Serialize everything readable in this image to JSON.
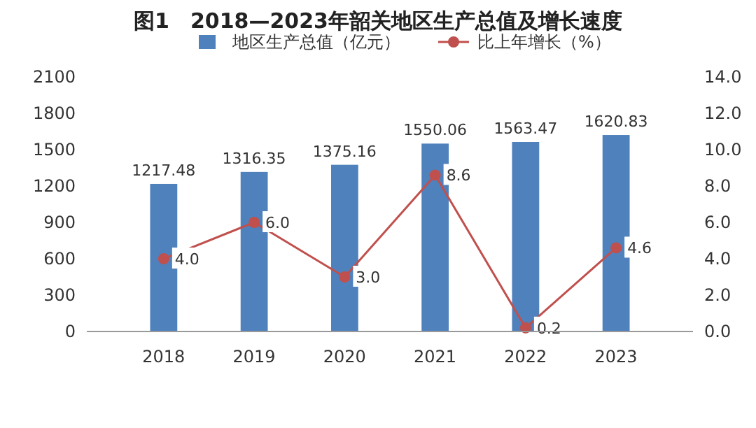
{
  "chart_data": {
    "type": "bar",
    "title": "图1　2018—2023年韶关地区生产总值及增长速度",
    "categories": [
      "2018",
      "2019",
      "2020",
      "2021",
      "2022",
      "2023"
    ],
    "series": [
      {
        "name": "地区生产总值（亿元）",
        "color": "#4f81bd",
        "values": [
          1217.48,
          1316.35,
          1375.16,
          1550.06,
          1563.47,
          1620.83
        ],
        "data_labels": true
      },
      {
        "name": "比上年增长（%）",
        "type": "line",
        "axis": "y2",
        "color": "#c0504d",
        "marker": "circle",
        "values": [
          4.0,
          6.0,
          3.0,
          8.6,
          0.2,
          4.6
        ],
        "value_labels": [
          "4.0",
          "6.0",
          "3.0",
          "8.6",
          "0.2",
          "4.6"
        ]
      }
    ],
    "ylim": [
      0,
      2100
    ],
    "yticks": [
      0,
      300,
      600,
      900,
      1200,
      1500,
      1800,
      2100
    ],
    "y2lim": [
      0,
      14
    ],
    "y2ticks": [
      {
        "value": 0,
        "label": "0.0"
      },
      {
        "value": 2,
        "label": "2.0"
      },
      {
        "value": 4,
        "label": "4.0"
      },
      {
        "value": 6,
        "label": "6.0"
      },
      {
        "value": 8,
        "label": "8.0"
      },
      {
        "value": 10,
        "label": "10.0"
      },
      {
        "value": 12,
        "label": "12.0"
      },
      {
        "value": 14,
        "label": "14.0"
      }
    ],
    "grid": false,
    "legend": "top"
  }
}
